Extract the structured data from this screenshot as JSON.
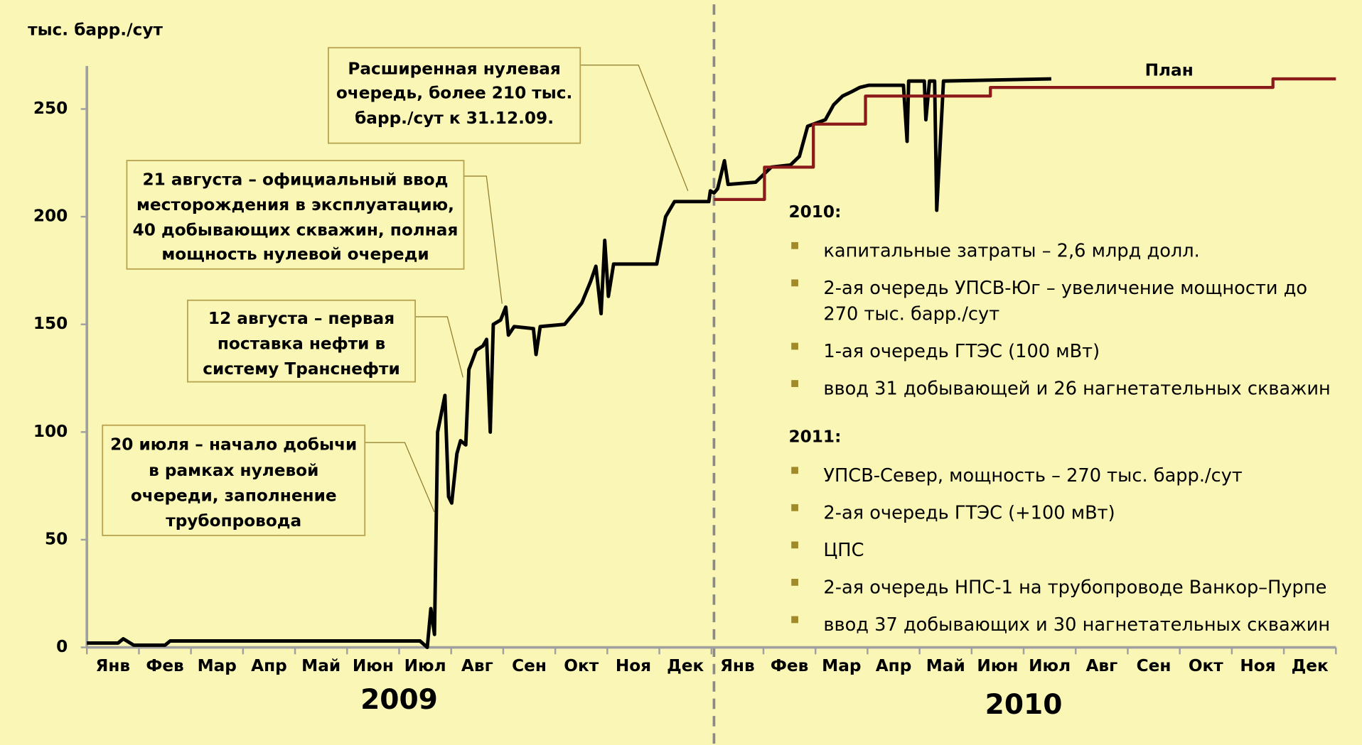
{
  "chart_data": {
    "type": "line",
    "y_label": "тыс. барр./сут",
    "categories": [
      "Янв",
      "Фев",
      "Мар",
      "Апр",
      "Май",
      "Июн",
      "Июл",
      "Авг",
      "Сен",
      "Окт",
      "Ноя",
      "Дек",
      "Янв",
      "Фев",
      "Мар",
      "Апр",
      "Май",
      "Июн",
      "Июл",
      "Авг",
      "Сен",
      "Окт",
      "Ноя",
      "Дек"
    ],
    "year_labels": [
      "2009",
      "2010"
    ],
    "xlim": [
      0,
      24
    ],
    "ylim": [
      0,
      270
    ],
    "yticks": [
      0,
      50,
      100,
      150,
      200,
      250
    ],
    "grid": false,
    "series": [
      {
        "color": "#000000",
        "x": [
          0,
          0.6,
          0.7,
          0.9,
          1.5,
          1.6,
          4.3,
          5,
          6.4,
          6.54,
          6.61,
          6.68,
          6.74,
          6.88,
          6.95,
          7.01,
          7.11,
          7.18,
          7.28,
          7.34,
          7.48,
          7.61,
          7.68,
          7.75,
          7.81,
          7.95,
          8.05,
          8.1,
          8.21,
          8.58,
          8.63,
          8.71,
          9.18,
          9.35,
          9.51,
          9.68,
          9.78,
          9.88,
          9.95,
          10.02,
          10.12,
          10.95,
          11.12,
          11.29,
          11.95,
          11.98,
          12.05,
          12.12,
          12.25,
          12.32,
          12.85,
          13.02,
          13.15,
          13.52,
          13.69,
          13.85,
          14.19,
          14.35,
          14.52,
          14.69,
          14.85,
          15.02,
          15.69,
          15.76,
          15.79,
          16.09,
          16.12,
          16.19,
          16.29,
          16.33,
          16.46,
          18.53
        ],
        "values": [
          2,
          2,
          4,
          1,
          1,
          3,
          3,
          3,
          3,
          0,
          18,
          6,
          100,
          117,
          70,
          67,
          90,
          96,
          94,
          129,
          138,
          140,
          143,
          100,
          150,
          152,
          158,
          145,
          149,
          148,
          136,
          149,
          150,
          155,
          160,
          170,
          177,
          155,
          189,
          163,
          178,
          178,
          200,
          207,
          207,
          212,
          211,
          213,
          226,
          215,
          216,
          220,
          223,
          224,
          228,
          242,
          245,
          252,
          256,
          258,
          260,
          261,
          261,
          235,
          263,
          263,
          245,
          263,
          263,
          203,
          263,
          264
        ]
      },
      {
        "name": "План",
        "color": "#8b1a1a",
        "x": [
          12.05,
          13.02,
          13.02,
          13.96,
          13.96,
          14.96,
          14.96,
          17.36,
          17.36,
          22.79,
          22.79,
          24
        ],
        "values": [
          208,
          208,
          223,
          223,
          243,
          243,
          256,
          256,
          260,
          260,
          264,
          264
        ]
      }
    ],
    "annotations": [
      [
        "Расширенная нулевая",
        "очередь, более 210 тыс.",
        "барр./сут к 31.12.09."
      ],
      [
        "21 августа – официальный ввод",
        "месторождения в эксплуатацию,",
        "40 добывающих скважин, полная",
        "мощность нулевой очереди"
      ],
      [
        "12 августа – первая",
        "поставка нефти в",
        "систему Транснефти"
      ],
      [
        "20 июля – начало добычи",
        "в рамках нулевой",
        "очереди, заполнение",
        "трубопровода"
      ]
    ]
  },
  "notes": [
    {
      "heading": "2010:",
      "items": [
        [
          "капитальные затраты – 2,6 млрд долл."
        ],
        [
          "2-ая очередь УПСВ-Юг – увеличение мощности до",
          "270 тыс. барр./сут"
        ],
        [
          "1-ая очередь ГТЭС (100 мВт)"
        ],
        [
          "ввод 31 добывающей и 26 нагнетательных скважин"
        ]
      ]
    },
    {
      "heading": "2011:",
      "items": [
        [
          "УПСВ-Север, мощность – 270 тыс. барр./сут"
        ],
        [
          "2-ая очередь ГТЭС (+100 мВт)"
        ],
        [
          "ЦПС"
        ],
        [
          "2-ая очередь НПС-1 на трубопроводе Ванкор–Пурпе"
        ],
        [
          "ввод 37 добывающих и 30 нагнетательных скважин"
        ]
      ]
    }
  ]
}
